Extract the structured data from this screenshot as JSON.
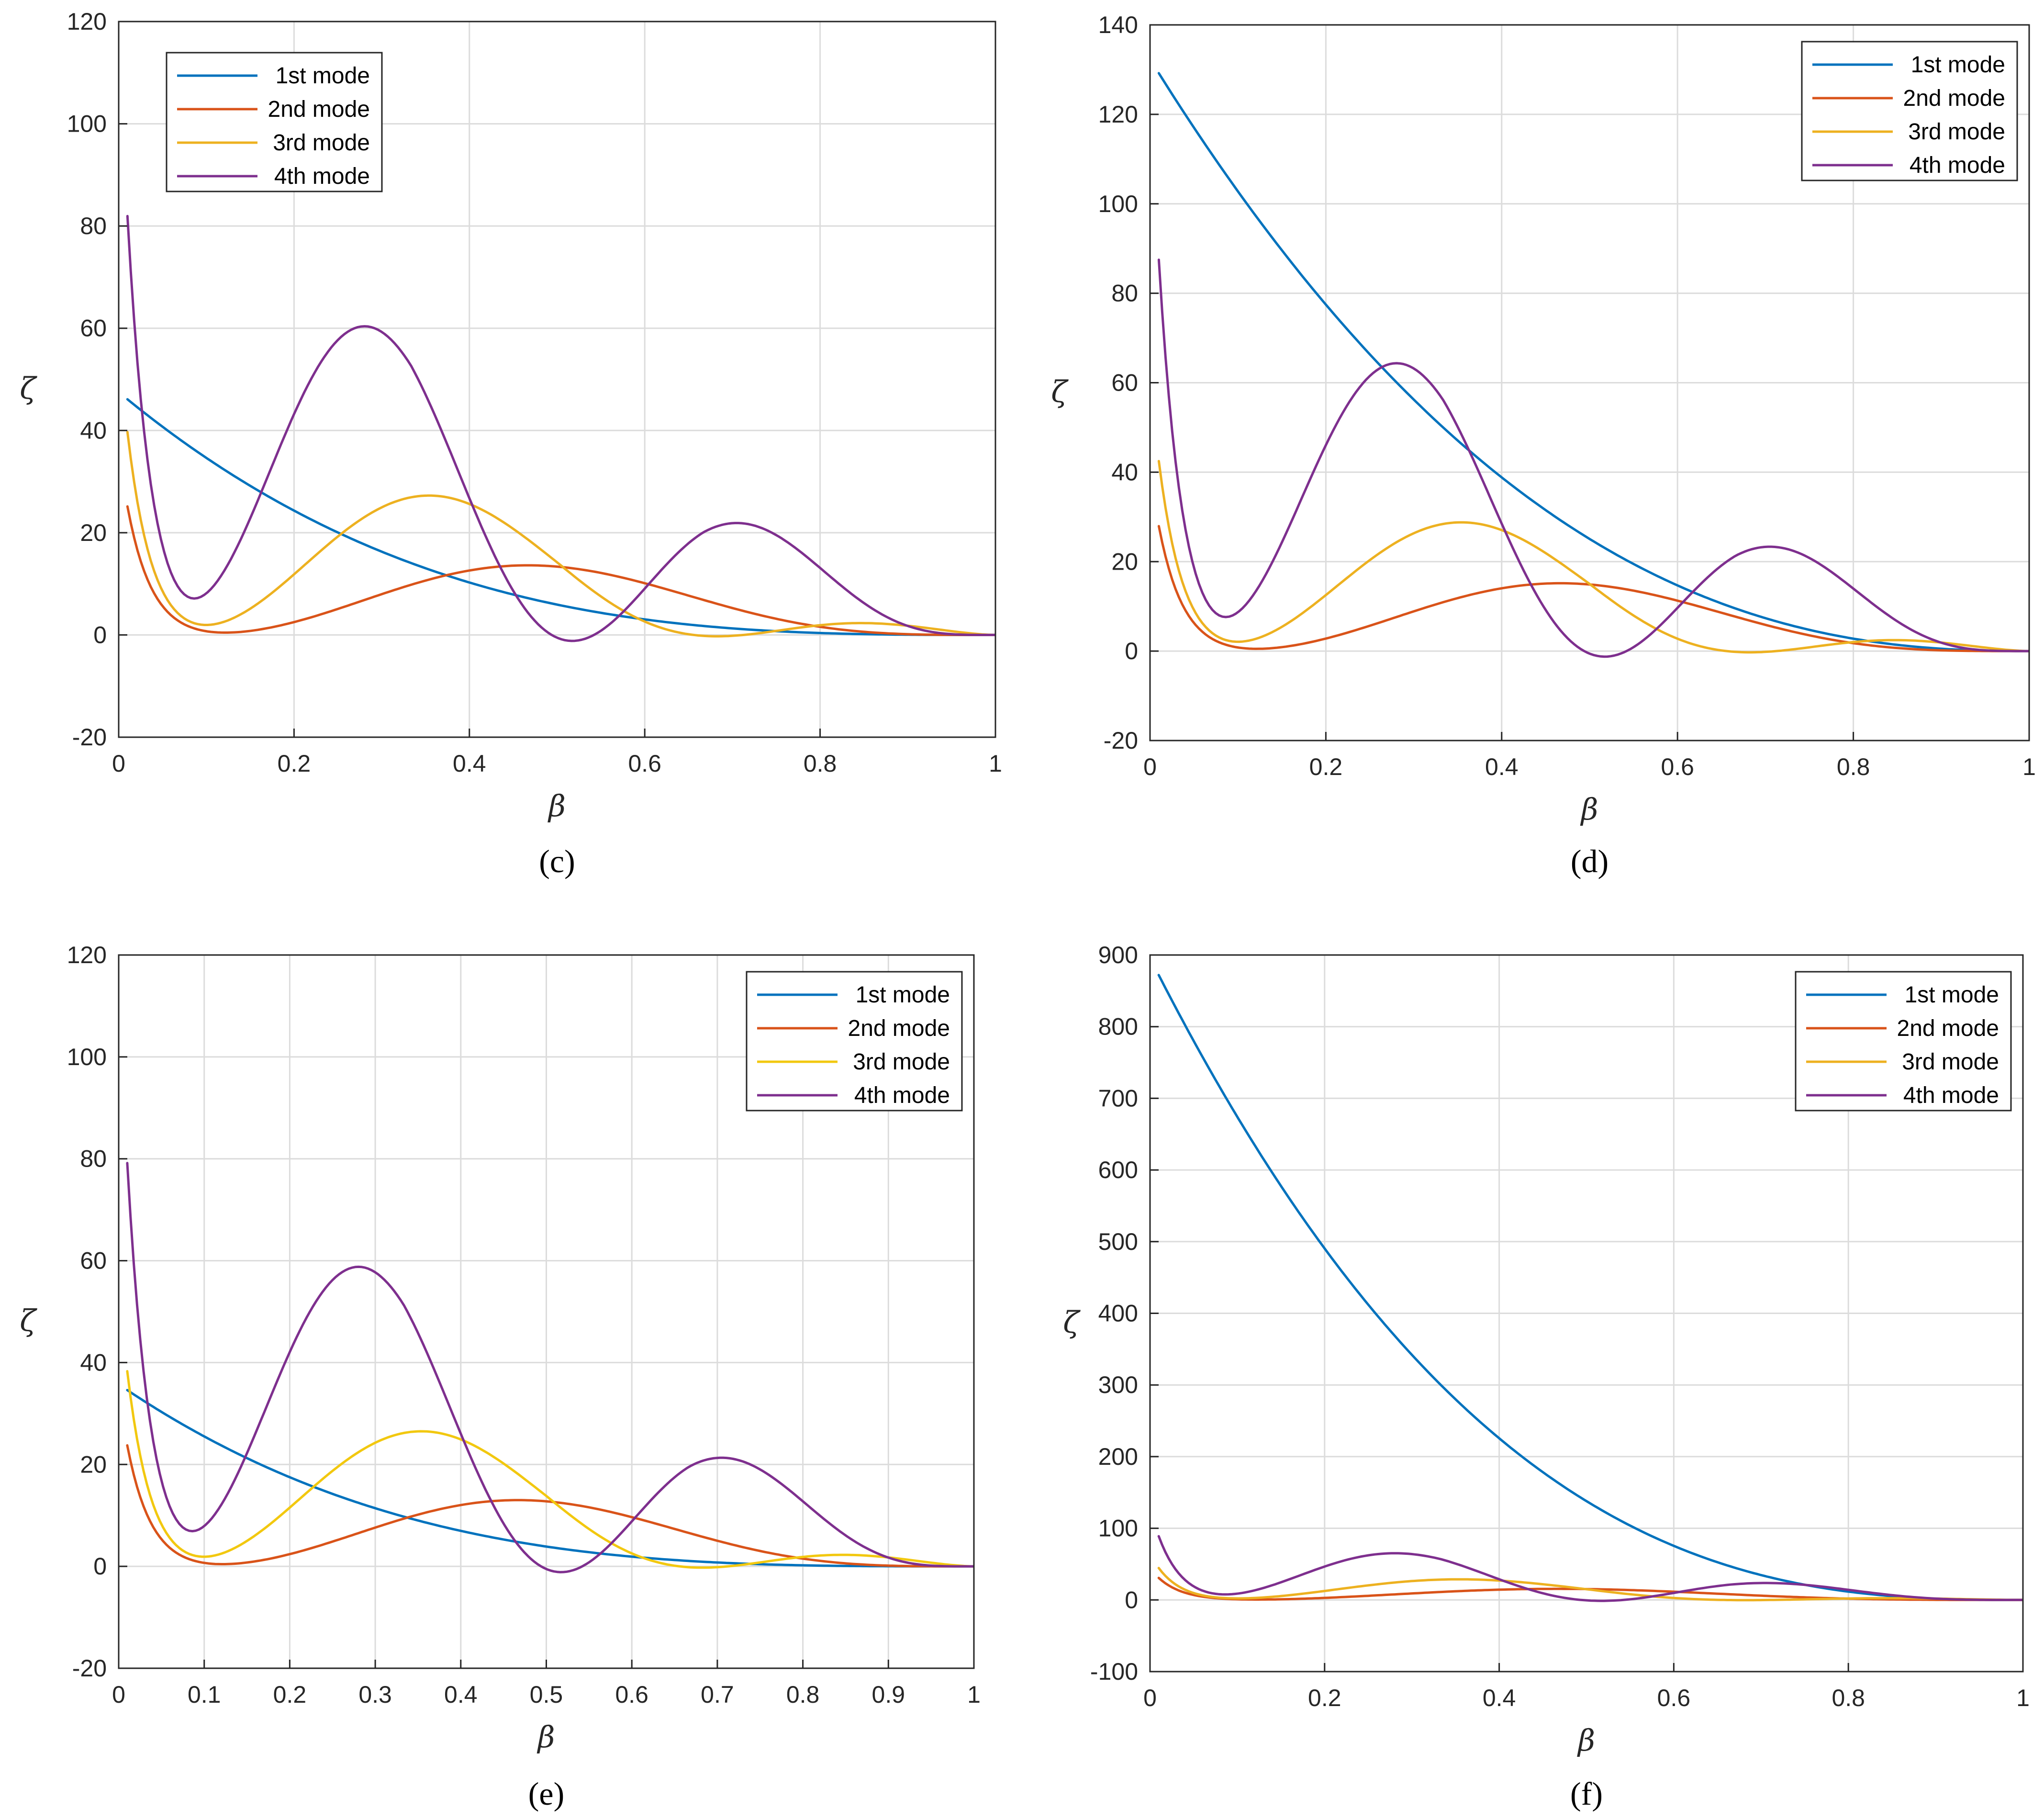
{
  "colors": {
    "mode1": "#0072BD",
    "mode2": "#D95319",
    "mode3_default": "#EDB120",
    "mode3_e": "#F2C80F",
    "mode4": "#7E2F8E"
  },
  "chart_data": [
    {
      "id": "c",
      "type": "line",
      "caption": "(c)",
      "xlabel": "β",
      "ylabel": "ζ",
      "xlim": [
        0,
        1
      ],
      "ylim": [
        -20,
        120
      ],
      "xticks": [
        0,
        0.2,
        0.4,
        0.6,
        0.8,
        1
      ],
      "xtick_labels": [
        "0",
        "0.2",
        "0.4",
        "0.6",
        "0.8",
        "1"
      ],
      "yticks": [
        -20,
        0,
        20,
        40,
        60,
        80,
        100,
        120
      ],
      "ytick_labels": [
        "-20",
        "0",
        "20",
        "40",
        "60",
        "80",
        "100",
        "120"
      ],
      "legend_position": "top-left",
      "series": [
        {
          "name": "1st mode",
          "color_key": "mode1",
          "model": {
            "kind": "decay",
            "y0": 46.1,
            "p": 3.0
          }
        },
        {
          "name": "2nd mode",
          "color_key": "mode2",
          "model": {
            "kind": "mode",
            "n": 2,
            "A": 36,
            "B": 22
          }
        },
        {
          "name": "3rd mode",
          "color_key": "mode3_default",
          "model": {
            "kind": "mode",
            "n": 3,
            "A": 57,
            "B": 36
          }
        },
        {
          "name": "4th mode",
          "color_key": "mode4",
          "model": {
            "kind": "mode",
            "n": 4,
            "A": 118,
            "B": 76
          }
        }
      ]
    },
    {
      "id": "d",
      "type": "line",
      "caption": "(d)",
      "xlabel": "β",
      "ylabel": "ζ",
      "xlim": [
        0,
        1
      ],
      "ylim": [
        -20,
        140
      ],
      "xticks": [
        0,
        0.2,
        0.4,
        0.6,
        0.8,
        1
      ],
      "xtick_labels": [
        "0",
        "0.2",
        "0.4",
        "0.6",
        "0.8",
        "1"
      ],
      "yticks": [
        -20,
        0,
        20,
        40,
        60,
        80,
        100,
        120,
        140
      ],
      "ytick_labels": [
        "-20",
        "0",
        "20",
        "40",
        "60",
        "80",
        "100",
        "120",
        "140"
      ],
      "legend_position": "top-right",
      "series": [
        {
          "name": "1st mode",
          "color_key": "mode1",
          "model": {
            "kind": "decay",
            "y0": 129.2,
            "p": 2.4
          }
        },
        {
          "name": "2nd mode",
          "color_key": "mode2",
          "model": {
            "kind": "mode",
            "n": 2,
            "A": 40,
            "B": 24.5
          }
        },
        {
          "name": "3rd mode",
          "color_key": "mode3_default",
          "model": {
            "kind": "mode",
            "n": 3,
            "A": 61,
            "B": 38
          }
        },
        {
          "name": "4th mode",
          "color_key": "mode4",
          "model": {
            "kind": "mode",
            "n": 4,
            "A": 126,
            "B": 81
          }
        }
      ]
    },
    {
      "id": "e",
      "type": "line",
      "caption": "(e)",
      "xlabel": "β",
      "ylabel": "ζ",
      "xlim": [
        0,
        1
      ],
      "ylim": [
        -20,
        120
      ],
      "xticks": [
        0,
        0.1,
        0.2,
        0.3,
        0.4,
        0.5,
        0.6,
        0.7,
        0.8,
        0.9,
        1
      ],
      "xtick_labels": [
        "0",
        "0.1",
        "0.2",
        "0.3",
        "0.4",
        "0.5",
        "0.6",
        "0.7",
        "0.8",
        "0.9",
        "1"
      ],
      "yticks": [
        -20,
        0,
        20,
        40,
        60,
        80,
        100,
        120
      ],
      "ytick_labels": [
        "-20",
        "0",
        "20",
        "40",
        "60",
        "80",
        "100",
        "120"
      ],
      "legend_position": "top-right",
      "series": [
        {
          "name": "1st mode",
          "color_key": "mode1",
          "model": {
            "kind": "decay",
            "y0": 34.6,
            "p": 3.2
          }
        },
        {
          "name": "2nd mode",
          "color_key": "mode2",
          "model": {
            "kind": "mode",
            "n": 2,
            "A": 34,
            "B": 21
          }
        },
        {
          "name": "3rd mode",
          "color_key": "mode3_e",
          "model": {
            "kind": "mode",
            "n": 3,
            "A": 55,
            "B": 35
          }
        },
        {
          "name": "4th mode",
          "color_key": "mode4",
          "model": {
            "kind": "mode",
            "n": 4,
            "A": 114,
            "B": 74
          }
        }
      ]
    },
    {
      "id": "f",
      "type": "line",
      "caption": "(f)",
      "xlabel": "β",
      "ylabel": "ζ",
      "xlim": [
        0,
        1
      ],
      "ylim": [
        -100,
        900
      ],
      "xticks": [
        0,
        0.2,
        0.4,
        0.6,
        0.8,
        1
      ],
      "xtick_labels": [
        "0",
        "0.2",
        "0.4",
        "0.6",
        "0.8",
        "1"
      ],
      "yticks": [
        -100,
        0,
        100,
        200,
        300,
        400,
        500,
        600,
        700,
        800,
        900
      ],
      "ytick_labels": [
        "-100",
        "0",
        "100",
        "200",
        "300",
        "400",
        "500",
        "600",
        "700",
        "800",
        "900"
      ],
      "legend_position": "top-right",
      "series": [
        {
          "name": "1st mode",
          "color_key": "mode1",
          "model": {
            "kind": "decay",
            "y0": 872,
            "p": 2.7
          }
        },
        {
          "name": "2nd mode",
          "color_key": "mode2",
          "model": {
            "kind": "mode",
            "n": 2,
            "A": 44,
            "B": 25
          }
        },
        {
          "name": "3rd mode",
          "color_key": "mode3_default",
          "model": {
            "kind": "mode",
            "n": 3,
            "A": 64,
            "B": 38
          }
        },
        {
          "name": "4th mode",
          "color_key": "mode4",
          "model": {
            "kind": "mode",
            "n": 4,
            "A": 128,
            "B": 82
          }
        }
      ]
    }
  ]
}
